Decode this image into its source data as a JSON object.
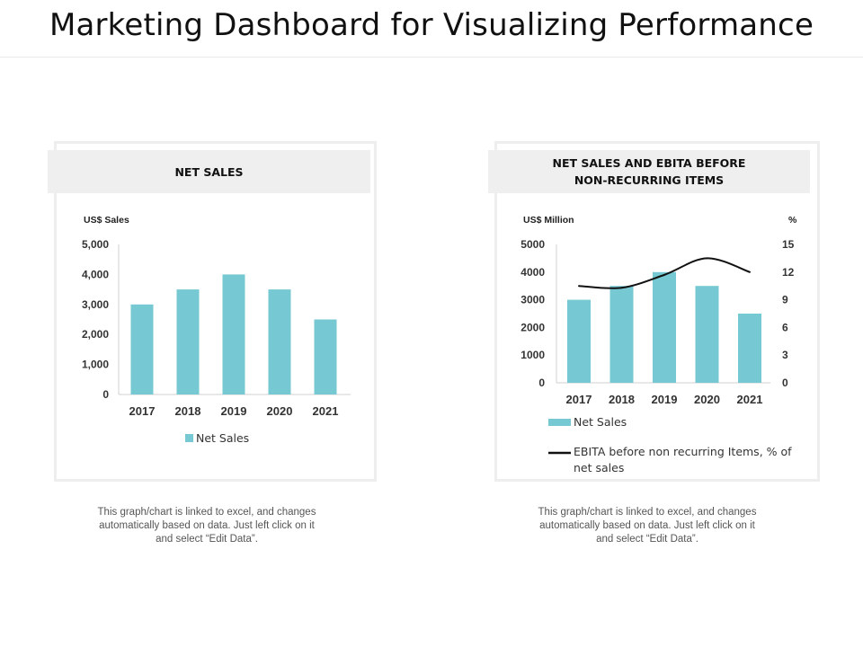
{
  "page": {
    "title": "Marketing Dashboard for Visualizing Performance",
    "note": "This graph/chart is linked to excel, and changes automatically based on data. Just left click on it and select “Edit Data”."
  },
  "colors": {
    "bar": "#76c8d2",
    "line": "#111111",
    "axis": "#d0d0d0",
    "header_bg": "#efefef"
  },
  "chart_data": [
    {
      "type": "bar",
      "title": "NET SALES",
      "ylabel": "US$ Sales",
      "categories": [
        "2017",
        "2018",
        "2019",
        "2020",
        "2021"
      ],
      "values": [
        3000,
        3500,
        4000,
        3500,
        2500
      ],
      "ylim": [
        0,
        5000
      ],
      "yticks": [
        0,
        1000,
        2000,
        3000,
        4000,
        5000
      ],
      "ytick_labels": [
        "0",
        "1,000",
        "2,000",
        "3,000",
        "4,000",
        "5,000"
      ],
      "legend": [
        "Net Sales"
      ],
      "legend_position": "bottom",
      "grid": false
    },
    {
      "type": "bar+line",
      "title": "NET SALES AND EBITA BEFORE NON-RECURRING ITEMS",
      "title_lines": [
        "NET SALES AND EBITA BEFORE",
        "NON-RECURRING ITEMS"
      ],
      "ylabel": "US$ Million",
      "y2label": "%",
      "categories": [
        "2017",
        "2018",
        "2019",
        "2020",
        "2021"
      ],
      "series": [
        {
          "name": "Net Sales",
          "type": "bar",
          "values": [
            3000,
            3500,
            4000,
            3500,
            2500
          ]
        },
        {
          "name": "EBITA before non recurring Items, % of net sales",
          "type": "line",
          "axis": "right",
          "values": [
            10.5,
            10.3,
            11.7,
            13.5,
            12
          ]
        }
      ],
      "legend_lines": [
        "EBITA before non recurring Items, % of",
        "net sales"
      ],
      "ylim": [
        0,
        5000
      ],
      "y2lim": [
        0,
        15
      ],
      "yticks": [
        0,
        1000,
        2000,
        3000,
        4000,
        5000
      ],
      "ytick_labels": [
        "0",
        "1000",
        "2000",
        "3000",
        "4000",
        "5000"
      ],
      "y2ticks": [
        0,
        3,
        6,
        9,
        12,
        15
      ],
      "y2tick_labels": [
        "0",
        "3",
        "6",
        "9",
        "12",
        "15"
      ],
      "legend_position": "bottom",
      "grid": false
    }
  ]
}
